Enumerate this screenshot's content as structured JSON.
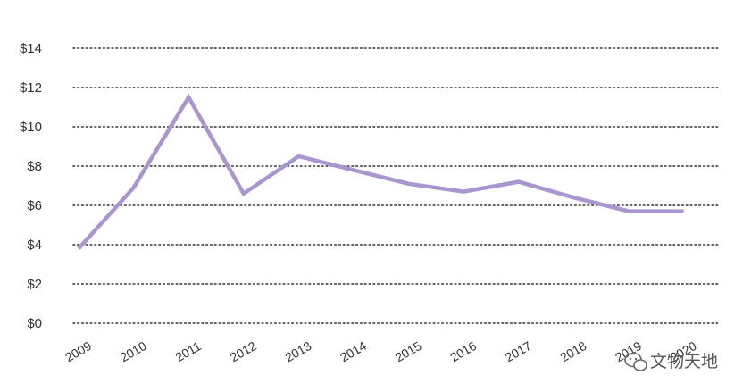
{
  "chart_data": {
    "type": "line",
    "title": "",
    "xlabel": "",
    "ylabel": "",
    "x": [
      "2009",
      "2010",
      "2011",
      "2012",
      "2013",
      "2014",
      "2015",
      "2016",
      "2017",
      "2018",
      "2019",
      "2020"
    ],
    "series": [
      {
        "values": [
          3.8,
          6.9,
          11.5,
          6.6,
          8.5,
          7.8,
          7.1,
          6.7,
          7.2,
          6.4,
          5.7,
          5.7
        ]
      }
    ],
    "y_tick_labels": [
      "$0",
      "$2",
      "$4",
      "$6",
      "$8",
      "$10",
      "$12",
      "$14"
    ],
    "y_ticks": [
      0,
      2,
      4,
      6,
      8,
      10,
      12,
      14
    ],
    "ylim": [
      0,
      14
    ],
    "grid": "horizontal dotted",
    "legend": "none",
    "colors": {
      "line": "#a996d1",
      "grid": "#333333",
      "text": "#333333"
    }
  },
  "watermark": {
    "text": "文物天地",
    "icon": "wechat-icon"
  }
}
